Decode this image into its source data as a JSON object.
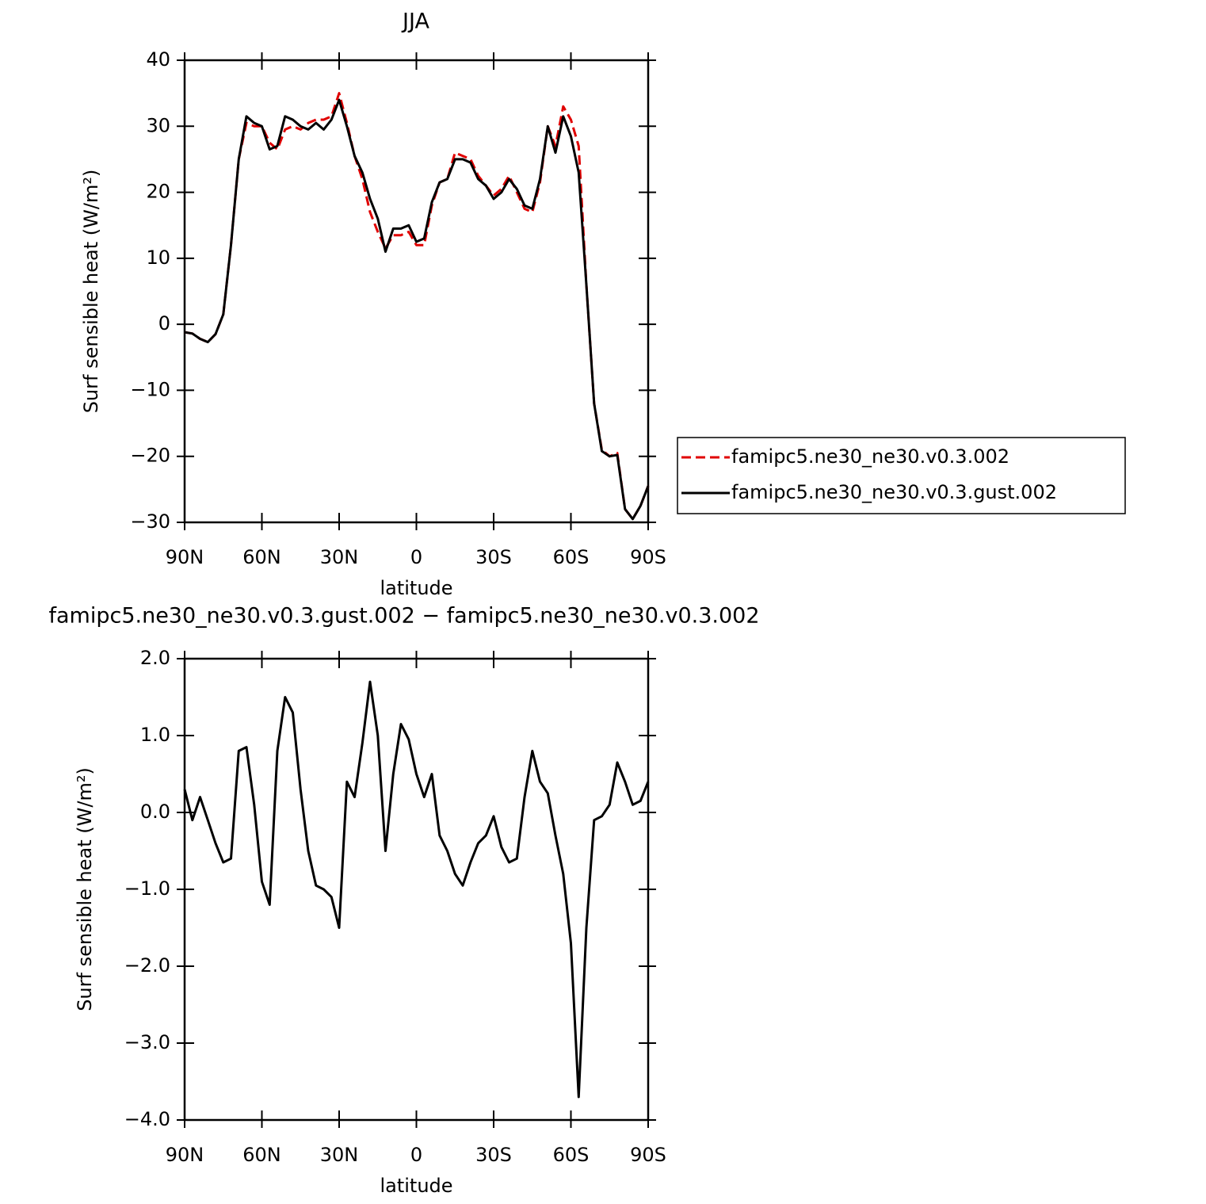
{
  "chart_data": [
    {
      "type": "line",
      "title": "JJA",
      "xlabel": "latitude",
      "ylabel": "Surf sensible heat (W/m²)",
      "x": [
        90,
        87,
        84,
        81,
        78,
        75,
        72,
        69,
        66,
        63,
        60,
        57,
        54,
        51,
        48,
        45,
        42,
        39,
        36,
        33,
        30,
        27,
        24,
        21,
        18,
        15,
        12,
        9,
        6,
        3,
        0,
        -3,
        -6,
        -9,
        -12,
        -15,
        -18,
        -21,
        -24,
        -27,
        -30,
        -33,
        -36,
        -39,
        -42,
        -45,
        -48,
        -51,
        -54,
        -57,
        -60,
        -63,
        -66,
        -69,
        -72,
        -75,
        -78,
        -81,
        -84,
        -87,
        -90
      ],
      "series": [
        {
          "name": "famipc5.ne30_ne30.v0.3.002",
          "color": "#e00000",
          "dash": true,
          "values": [
            -1.2,
            -1.4,
            -2.2,
            -2.7,
            -1.5,
            1.5,
            12,
            25,
            30.5,
            30,
            30,
            27.5,
            26.5,
            29.5,
            30,
            29.5,
            30.5,
            31,
            31,
            31.5,
            35,
            30.5,
            25.5,
            22,
            17,
            14,
            11.5,
            13.5,
            13.5,
            14,
            12,
            12,
            18,
            21.5,
            22,
            26,
            25.5,
            25,
            22.5,
            21,
            19.5,
            20.5,
            22.5,
            20,
            17.5,
            17,
            21.5,
            30,
            27,
            33,
            31,
            27,
            6,
            -12,
            -19,
            -20,
            -19.5,
            -28,
            -29.5,
            -27.5,
            -24.5
          ]
        },
        {
          "name": "famipc5.ne30_ne30.v0.3.gust.002",
          "color": "#000000",
          "dash": false,
          "values": [
            -1.2,
            -1.4,
            -2.2,
            -2.7,
            -1.5,
            1.5,
            12,
            25,
            31.5,
            30.5,
            30,
            26.5,
            27,
            31.5,
            31,
            30,
            29.5,
            30.5,
            29.5,
            31,
            34,
            30,
            25.5,
            23,
            19,
            16,
            11,
            14.5,
            14.5,
            15,
            12.5,
            13,
            18.5,
            21.5,
            22,
            25,
            25,
            24.5,
            22,
            21,
            19,
            20,
            22,
            20.5,
            18,
            17.5,
            22,
            30,
            26,
            31.5,
            28.5,
            23,
            6,
            -12,
            -19.2,
            -20,
            -19.8,
            -28,
            -29.5,
            -27.5,
            -24.5
          ]
        }
      ],
      "xlim": [
        90,
        -90
      ],
      "xticks": [
        {
          "value": 90,
          "label": "90N"
        },
        {
          "value": 60,
          "label": "60N"
        },
        {
          "value": 30,
          "label": "30N"
        },
        0,
        {
          "value": -30,
          "label": "30S"
        },
        {
          "value": -60,
          "label": "60S"
        },
        {
          "value": -90,
          "label": "90S"
        }
      ],
      "ylim": [
        -30,
        40
      ],
      "yticks": [
        {
          "value": 40,
          "label": "40"
        },
        {
          "value": 30,
          "label": "30"
        },
        {
          "value": 20,
          "label": "20"
        },
        {
          "value": 10,
          "label": "10"
        },
        {
          "value": 0,
          "label": "0"
        },
        {
          "value": -10,
          "label": "−10"
        },
        {
          "value": -20,
          "label": "−20"
        },
        {
          "value": -30,
          "label": "−30"
        }
      ],
      "legend": "right"
    },
    {
      "type": "line",
      "title": "famipc5.ne30_ne30.v0.3.gust.002 − famipc5.ne30_ne30.v0.3.002",
      "xlabel": "latitude",
      "ylabel": "Surf sensible heat (W/m²)",
      "x": [
        90,
        87,
        84,
        81,
        78,
        75,
        72,
        69,
        66,
        63,
        60,
        57,
        54,
        51,
        48,
        45,
        42,
        39,
        36,
        33,
        30,
        27,
        24,
        21,
        18,
        15,
        12,
        9,
        6,
        3,
        0,
        -3,
        -6,
        -9,
        -12,
        -15,
        -18,
        -21,
        -24,
        -27,
        -30,
        -33,
        -36,
        -39,
        -42,
        -45,
        -48,
        -51,
        -54,
        -57,
        -60,
        -63,
        -66,
        -69,
        -72,
        -75,
        -78,
        -81,
        -84,
        -87,
        -90
      ],
      "series": [
        {
          "color": "#000000",
          "dash": false,
          "values": [
            0.3,
            -0.1,
            0.2,
            -0.1,
            -0.4,
            -0.65,
            -0.6,
            0.8,
            0.85,
            0.1,
            -0.9,
            -1.2,
            0.8,
            1.5,
            1.3,
            0.3,
            -0.5,
            -0.95,
            -1.0,
            -1.1,
            -1.5,
            0.4,
            0.2,
            0.9,
            1.7,
            1.0,
            -0.5,
            0.5,
            1.15,
            0.95,
            0.5,
            0.2,
            0.5,
            -0.3,
            -0.5,
            -0.8,
            -0.95,
            -0.65,
            -0.4,
            -0.3,
            -0.05,
            -0.45,
            -0.65,
            -0.6,
            0.2,
            0.8,
            0.4,
            0.25,
            -0.3,
            -0.8,
            -1.7,
            -3.7,
            -1.5,
            -0.1,
            -0.05,
            0.1,
            0.65,
            0.4,
            0.1,
            0.15,
            0.4
          ]
        }
      ],
      "xlim": [
        90,
        -90
      ],
      "xticks": [
        {
          "value": 90,
          "label": "90N"
        },
        {
          "value": 60,
          "label": "60N"
        },
        {
          "value": 30,
          "label": "30N"
        },
        0,
        {
          "value": -30,
          "label": "30S"
        },
        {
          "value": -60,
          "label": "60S"
        },
        {
          "value": -90,
          "label": "90S"
        }
      ],
      "ylim": [
        -4,
        2
      ],
      "yticks": [
        {
          "value": 2,
          "label": "2.0"
        },
        {
          "value": 1,
          "label": "1.0"
        },
        {
          "value": 0,
          "label": "0.0"
        },
        {
          "value": -1,
          "label": "−1.0"
        },
        {
          "value": -2,
          "label": "−2.0"
        },
        {
          "value": -3,
          "label": "−3.0"
        },
        {
          "value": -4,
          "label": "−4.0"
        }
      ]
    }
  ]
}
